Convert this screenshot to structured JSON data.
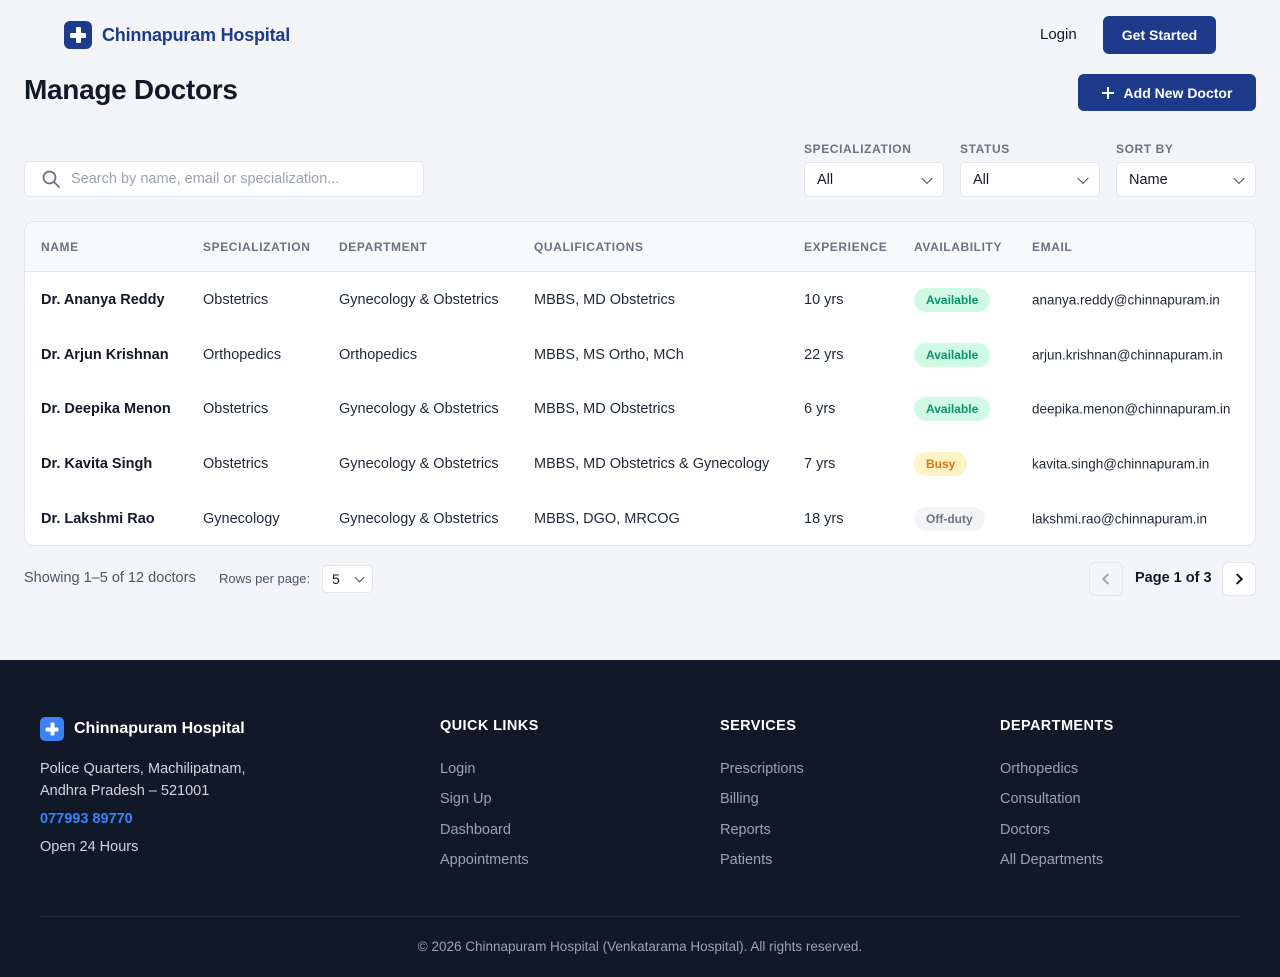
{
  "header": {
    "brand": "Chinnapuram Hospital",
    "login_label": "Login",
    "get_started_label": "Get Started"
  },
  "page": {
    "title": "Manage Doctors",
    "add_button_label": "Add New Doctor"
  },
  "filters": {
    "search_placeholder": "Search by name, email or specialization...",
    "specialization": {
      "label": "SPECIALIZATION",
      "value": "All"
    },
    "status": {
      "label": "STATUS",
      "value": "All"
    },
    "sort_by": {
      "label": "SORT BY",
      "value": "Name"
    }
  },
  "table": {
    "columns": [
      "NAME",
      "SPECIALIZATION",
      "DEPARTMENT",
      "QUALIFICATIONS",
      "EXPERIENCE",
      "AVAILABILITY",
      "EMAIL"
    ],
    "rows": [
      {
        "name": "Dr. Ananya Reddy",
        "specialization": "Obstetrics",
        "department": "Gynecology & Obstetrics",
        "qualifications": "MBBS, MD Obstetrics",
        "experience": "10 yrs",
        "availability": "Available",
        "email": "ananya.reddy@chinnapuram.in"
      },
      {
        "name": "Dr. Arjun Krishnan",
        "specialization": "Orthopedics",
        "department": "Orthopedics",
        "qualifications": "MBBS, MS Ortho, MCh",
        "experience": "22 yrs",
        "availability": "Available",
        "email": "arjun.krishnan@chinnapuram.in"
      },
      {
        "name": "Dr. Deepika Menon",
        "specialization": "Obstetrics",
        "department": "Gynecology & Obstetrics",
        "qualifications": "MBBS, MD Obstetrics",
        "experience": "6 yrs",
        "availability": "Available",
        "email": "deepika.menon@chinnapuram.in"
      },
      {
        "name": "Dr. Kavita Singh",
        "specialization": "Obstetrics",
        "department": "Gynecology & Obstetrics",
        "qualifications": "MBBS, MD Obstetrics & Gynecology",
        "experience": "7 yrs",
        "availability": "Busy",
        "email": "kavita.singh@chinnapuram.in"
      },
      {
        "name": "Dr. Lakshmi Rao",
        "specialization": "Gynecology",
        "department": "Gynecology & Obstetrics",
        "qualifications": "MBBS, DGO, MRCOG",
        "experience": "18 yrs",
        "availability": "Off-duty",
        "email": "lakshmi.rao@chinnapuram.in"
      }
    ]
  },
  "status_colors": {
    "Available": {
      "bg": "#d1fae5",
      "fg": "#059669"
    },
    "Busy": {
      "bg": "#fef3c7",
      "fg": "#d97706"
    },
    "Off-duty": {
      "bg": "#f3f4f6",
      "fg": "#6b7280"
    }
  },
  "pagination": {
    "showing": "Showing 1–5 of 12 doctors",
    "rows_per_page_label": "Rows per page:",
    "rows_per_page_value": "5",
    "page_info": "Page 1 of 3"
  },
  "footer": {
    "brand": "Chinnapuram Hospital",
    "address_line1": "Police Quarters, Machilipatnam,",
    "address_line2": "Andhra Pradesh – 521001",
    "phone": "077993 89770",
    "hours": "Open 24 Hours",
    "quick_links": {
      "title": "QUICK LINKS",
      "items": [
        "Login",
        "Sign Up",
        "Dashboard",
        "Appointments"
      ]
    },
    "services": {
      "title": "SERVICES",
      "items": [
        "Prescriptions",
        "Billing",
        "Reports",
        "Patients"
      ]
    },
    "departments": {
      "title": "DEPARTMENTS",
      "items": [
        "Orthopedics",
        "Consultation",
        "Doctors",
        "All Departments"
      ]
    },
    "copyright": "© 2026 Chinnapuram Hospital (Venkatarama Hospital). All rights reserved."
  },
  "colors": {
    "primary": "#1e3a8a",
    "accent": "#3b82f6",
    "footer_bg": "#111827"
  },
  "icons": {
    "brand_logo": "medical-cross-icon",
    "search": "search-icon",
    "add": "plus-icon",
    "dropdown": "chevron-down-icon",
    "prev": "chevron-left-icon",
    "next": "chevron-right-icon"
  }
}
